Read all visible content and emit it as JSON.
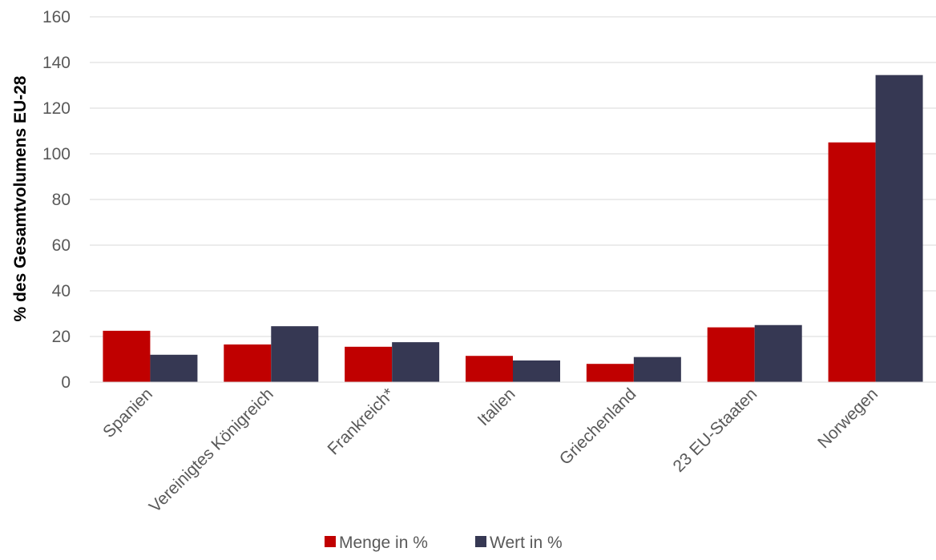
{
  "chart_data": {
    "type": "bar",
    "categories": [
      "Spanien",
      "Vereinigtes Königreich",
      "Frankreich*",
      "Italien",
      "Griechenland",
      "23 EU-Staaten",
      "Norwegen"
    ],
    "series": [
      {
        "name": "Menge in %",
        "color": "#c00000",
        "values": [
          22.5,
          16.5,
          15.5,
          11.5,
          8,
          24,
          105
        ]
      },
      {
        "name": "Wert in %",
        "color": "#363853",
        "values": [
          12,
          24.5,
          17.5,
          9.5,
          11,
          25,
          134.5
        ]
      }
    ],
    "ylabel": "% des Gesamtvolumens EU-28",
    "xlabel": "",
    "ylim": [
      0,
      160
    ],
    "yticks": [
      0,
      20,
      40,
      60,
      80,
      100,
      120,
      140,
      160
    ],
    "grid": true,
    "legend": "bottom"
  }
}
